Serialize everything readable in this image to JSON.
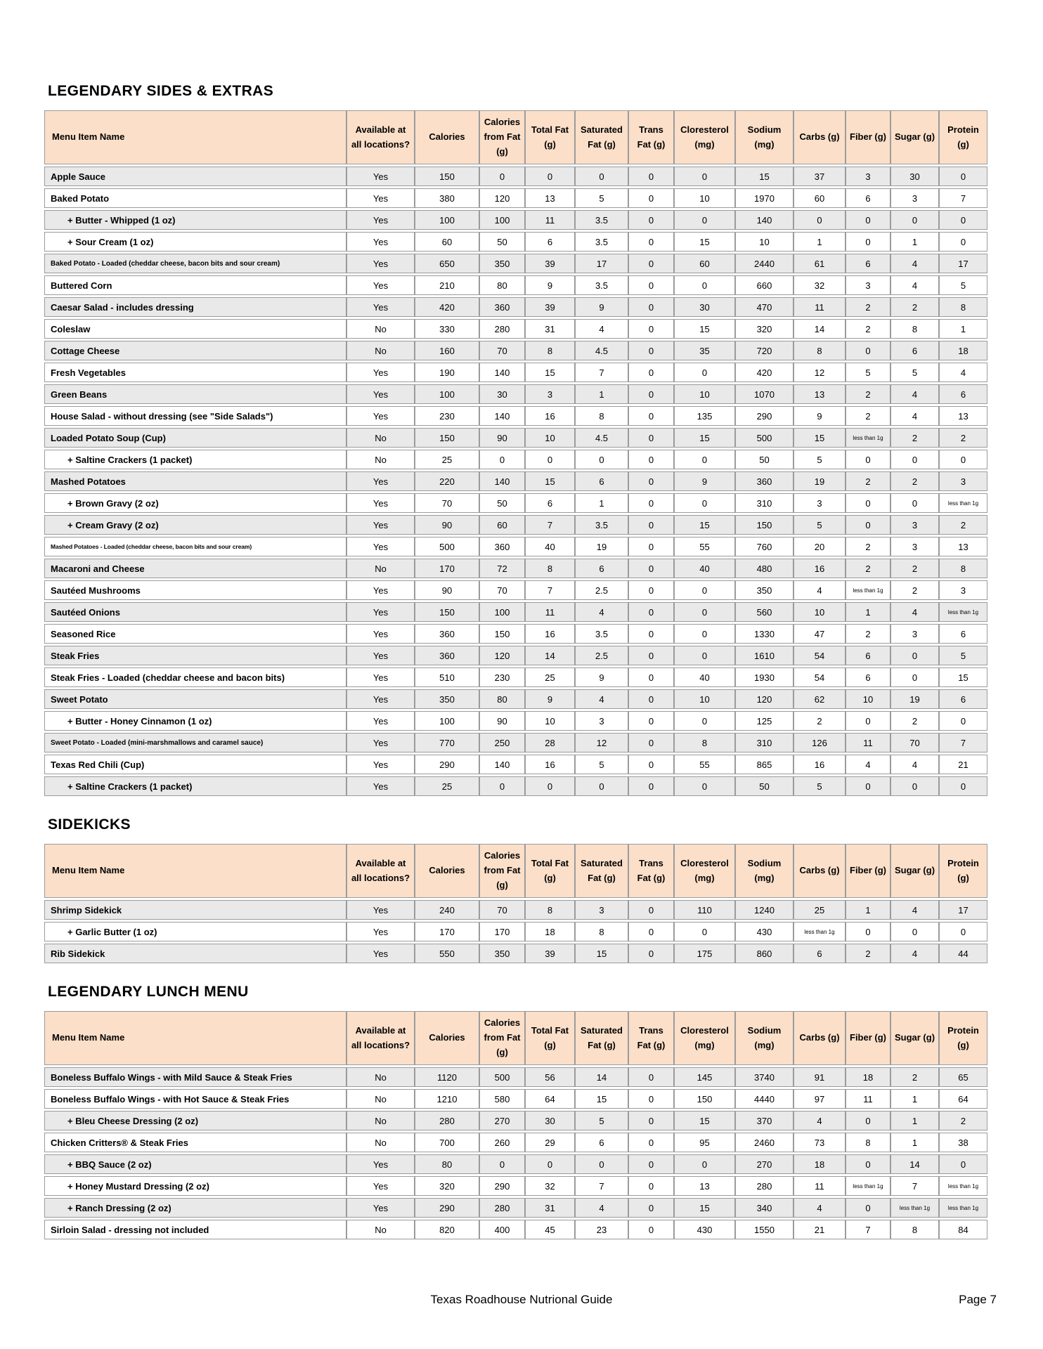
{
  "columns": [
    "Menu Item Name",
    "Available at all locations?",
    "Calories",
    "Calories from Fat (g)",
    "Total Fat (g)",
    "Saturated Fat (g)",
    "Trans Fat (g)",
    "Cloresterol (mg)",
    "Sodium (mg)",
    "Carbs (g)",
    "Fiber (g)",
    "Sugar (g)",
    "Protein (g)"
  ],
  "colors": {
    "header_bg": "#FBDFC9",
    "stripe_bg": "#E9E9E9",
    "border": "#9B9B9B"
  },
  "sections": [
    {
      "title": "LEGENDARY SIDES & EXTRAS",
      "rows": [
        {
          "name": "Apple Sauce",
          "values": [
            "Yes",
            "150",
            "0",
            "0",
            "0",
            "0",
            "0",
            "15",
            "37",
            "3",
            "30",
            "0"
          ]
        },
        {
          "name": "Baked Potato",
          "values": [
            "Yes",
            "380",
            "120",
            "13",
            "5",
            "0",
            "10",
            "1970",
            "60",
            "6",
            "3",
            "7"
          ]
        },
        {
          "name": "+ Butter - Whipped (1 oz)",
          "indent": true,
          "values": [
            "Yes",
            "100",
            "100",
            "11",
            "3.5",
            "0",
            "0",
            "140",
            "0",
            "0",
            "0",
            "0"
          ]
        },
        {
          "name": "+ Sour Cream (1 oz)",
          "indent": true,
          "values": [
            "Yes",
            "60",
            "50",
            "6",
            "3.5",
            "0",
            "15",
            "10",
            "1",
            "0",
            "1",
            "0"
          ]
        },
        {
          "name": "Baked Potato - Loaded (cheddar cheese, bacon bits and sour cream)",
          "size": "small",
          "values": [
            "Yes",
            "650",
            "350",
            "39",
            "17",
            "0",
            "60",
            "2440",
            "61",
            "6",
            "4",
            "17"
          ]
        },
        {
          "name": "Buttered Corn",
          "values": [
            "Yes",
            "210",
            "80",
            "9",
            "3.5",
            "0",
            "0",
            "660",
            "32",
            "3",
            "4",
            "5"
          ]
        },
        {
          "name": "Caesar Salad - includes dressing",
          "values": [
            "Yes",
            "420",
            "360",
            "39",
            "9",
            "0",
            "30",
            "470",
            "11",
            "2",
            "2",
            "8"
          ]
        },
        {
          "name": "Coleslaw",
          "values": [
            "No",
            "330",
            "280",
            "31",
            "4",
            "0",
            "15",
            "320",
            "14",
            "2",
            "8",
            "1"
          ]
        },
        {
          "name": "Cottage Cheese",
          "values": [
            "No",
            "160",
            "70",
            "8",
            "4.5",
            "0",
            "35",
            "720",
            "8",
            "0",
            "6",
            "18"
          ]
        },
        {
          "name": "Fresh Vegetables",
          "values": [
            "Yes",
            "190",
            "140",
            "15",
            "7",
            "0",
            "0",
            "420",
            "12",
            "5",
            "5",
            "4"
          ]
        },
        {
          "name": "Green Beans",
          "values": [
            "Yes",
            "100",
            "30",
            "3",
            "1",
            "0",
            "10",
            "1070",
            "13",
            "2",
            "4",
            "6"
          ]
        },
        {
          "name": "House Salad - without dressing (see \"Side Salads\")",
          "values": [
            "Yes",
            "230",
            "140",
            "16",
            "8",
            "0",
            "135",
            "290",
            "9",
            "2",
            "4",
            "13"
          ]
        },
        {
          "name": "Loaded Potato Soup (Cup)",
          "values": [
            "No",
            "150",
            "90",
            "10",
            "4.5",
            "0",
            "15",
            "500",
            "15",
            "less than 1g",
            "2",
            "2"
          ]
        },
        {
          "name": "+ Saltine Crackers (1 packet)",
          "indent": true,
          "values": [
            "No",
            "25",
            "0",
            "0",
            "0",
            "0",
            "0",
            "50",
            "5",
            "0",
            "0",
            "0"
          ]
        },
        {
          "name": "Mashed Potatoes",
          "values": [
            "Yes",
            "220",
            "140",
            "15",
            "6",
            "0",
            "9",
            "360",
            "19",
            "2",
            "2",
            "3"
          ]
        },
        {
          "name": "+ Brown Gravy (2 oz)",
          "indent": true,
          "values": [
            "Yes",
            "70",
            "50",
            "6",
            "1",
            "0",
            "0",
            "310",
            "3",
            "0",
            "0",
            "less than 1g"
          ]
        },
        {
          "name": "+ Cream Gravy (2 oz)",
          "indent": true,
          "values": [
            "Yes",
            "90",
            "60",
            "7",
            "3.5",
            "0",
            "15",
            "150",
            "5",
            "0",
            "3",
            "2"
          ]
        },
        {
          "name": "Mashed Potatoes - Loaded (cheddar cheese, bacon bits and sour cream)",
          "size": "xsmall",
          "values": [
            "Yes",
            "500",
            "360",
            "40",
            "19",
            "0",
            "55",
            "760",
            "20",
            "2",
            "3",
            "13"
          ]
        },
        {
          "name": "Macaroni and Cheese",
          "values": [
            "No",
            "170",
            "72",
            "8",
            "6",
            "0",
            "40",
            "480",
            "16",
            "2",
            "2",
            "8"
          ]
        },
        {
          "name": "Sautéed Mushrooms",
          "values": [
            "Yes",
            "90",
            "70",
            "7",
            "2.5",
            "0",
            "0",
            "350",
            "4",
            "less than 1g",
            "2",
            "3"
          ]
        },
        {
          "name": "Sautéed Onions",
          "values": [
            "Yes",
            "150",
            "100",
            "11",
            "4",
            "0",
            "0",
            "560",
            "10",
            "1",
            "4",
            "less than 1g"
          ]
        },
        {
          "name": "Seasoned Rice",
          "values": [
            "Yes",
            "360",
            "150",
            "16",
            "3.5",
            "0",
            "0",
            "1330",
            "47",
            "2",
            "3",
            "6"
          ]
        },
        {
          "name": "Steak Fries",
          "values": [
            "Yes",
            "360",
            "120",
            "14",
            "2.5",
            "0",
            "0",
            "1610",
            "54",
            "6",
            "0",
            "5"
          ]
        },
        {
          "name": "Steak Fries - Loaded (cheddar cheese and bacon bits)",
          "values": [
            "Yes",
            "510",
            "230",
            "25",
            "9",
            "0",
            "40",
            "1930",
            "54",
            "6",
            "0",
            "15"
          ]
        },
        {
          "name": "Sweet Potato",
          "values": [
            "Yes",
            "350",
            "80",
            "9",
            "4",
            "0",
            "10",
            "120",
            "62",
            "10",
            "19",
            "6"
          ]
        },
        {
          "name": "+ Butter - Honey Cinnamon (1 oz)",
          "indent": true,
          "values": [
            "Yes",
            "100",
            "90",
            "10",
            "3",
            "0",
            "0",
            "125",
            "2",
            "0",
            "2",
            "0"
          ]
        },
        {
          "name": "Sweet Potato - Loaded (mini-marshmallows and caramel sauce)",
          "size": "small",
          "values": [
            "Yes",
            "770",
            "250",
            "28",
            "12",
            "0",
            "8",
            "310",
            "126",
            "11",
            "70",
            "7"
          ]
        },
        {
          "name": "Texas Red Chili (Cup)",
          "values": [
            "Yes",
            "290",
            "140",
            "16",
            "5",
            "0",
            "55",
            "865",
            "16",
            "4",
            "4",
            "21"
          ]
        },
        {
          "name": "+ Saltine Crackers (1 packet)",
          "indent": true,
          "values": [
            "Yes",
            "25",
            "0",
            "0",
            "0",
            "0",
            "0",
            "50",
            "5",
            "0",
            "0",
            "0"
          ]
        }
      ]
    },
    {
      "title": "SIDEKICKS",
      "rows": [
        {
          "name": "Shrimp Sidekick",
          "values": [
            "Yes",
            "240",
            "70",
            "8",
            "3",
            "0",
            "110",
            "1240",
            "25",
            "1",
            "4",
            "17"
          ]
        },
        {
          "name": "+ Garlic Butter (1 oz)",
          "indent": true,
          "values": [
            "Yes",
            "170",
            "170",
            "18",
            "8",
            "0",
            "0",
            "430",
            "less than 1g",
            "0",
            "0",
            "0"
          ]
        },
        {
          "name": "Rib Sidekick",
          "values": [
            "Yes",
            "550",
            "350",
            "39",
            "15",
            "0",
            "175",
            "860",
            "6",
            "2",
            "4",
            "44"
          ]
        }
      ]
    },
    {
      "title": "LEGENDARY LUNCH MENU",
      "rows": [
        {
          "name": "Boneless Buffalo Wings - with Mild Sauce & Steak Fries",
          "values": [
            "No",
            "1120",
            "500",
            "56",
            "14",
            "0",
            "145",
            "3740",
            "91",
            "18",
            "2",
            "65"
          ]
        },
        {
          "name": "Boneless Buffalo Wings - with Hot Sauce & Steak Fries",
          "values": [
            "No",
            "1210",
            "580",
            "64",
            "15",
            "0",
            "150",
            "4440",
            "97",
            "11",
            "1",
            "64"
          ]
        },
        {
          "name": "+ Bleu Cheese Dressing (2 oz)",
          "indent": true,
          "values": [
            "No",
            "280",
            "270",
            "30",
            "5",
            "0",
            "15",
            "370",
            "4",
            "0",
            "1",
            "2"
          ]
        },
        {
          "name": "Chicken Critters® & Steak Fries",
          "values": [
            "No",
            "700",
            "260",
            "29",
            "6",
            "0",
            "95",
            "2460",
            "73",
            "8",
            "1",
            "38"
          ]
        },
        {
          "name": "+ BBQ Sauce (2 oz)",
          "indent": true,
          "values": [
            "Yes",
            "80",
            "0",
            "0",
            "0",
            "0",
            "0",
            "270",
            "18",
            "0",
            "14",
            "0"
          ]
        },
        {
          "name": "+ Honey Mustard Dressing (2 oz)",
          "indent": true,
          "values": [
            "Yes",
            "320",
            "290",
            "32",
            "7",
            "0",
            "13",
            "280",
            "11",
            "less than 1g",
            "7",
            "less than 1g"
          ]
        },
        {
          "name": "+ Ranch Dressing (2 oz)",
          "indent": true,
          "values": [
            "Yes",
            "290",
            "280",
            "31",
            "4",
            "0",
            "15",
            "340",
            "4",
            "0",
            "less than 1g",
            "less than 1g"
          ]
        },
        {
          "name": "Sirloin Salad - dressing not included",
          "values": [
            "No",
            "820",
            "400",
            "45",
            "23",
            "0",
            "430",
            "1550",
            "21",
            "7",
            "8",
            "84"
          ]
        }
      ]
    }
  ],
  "footer": {
    "title": "Texas Roadhouse Nutrional Guide",
    "page_label": "Page 7"
  }
}
